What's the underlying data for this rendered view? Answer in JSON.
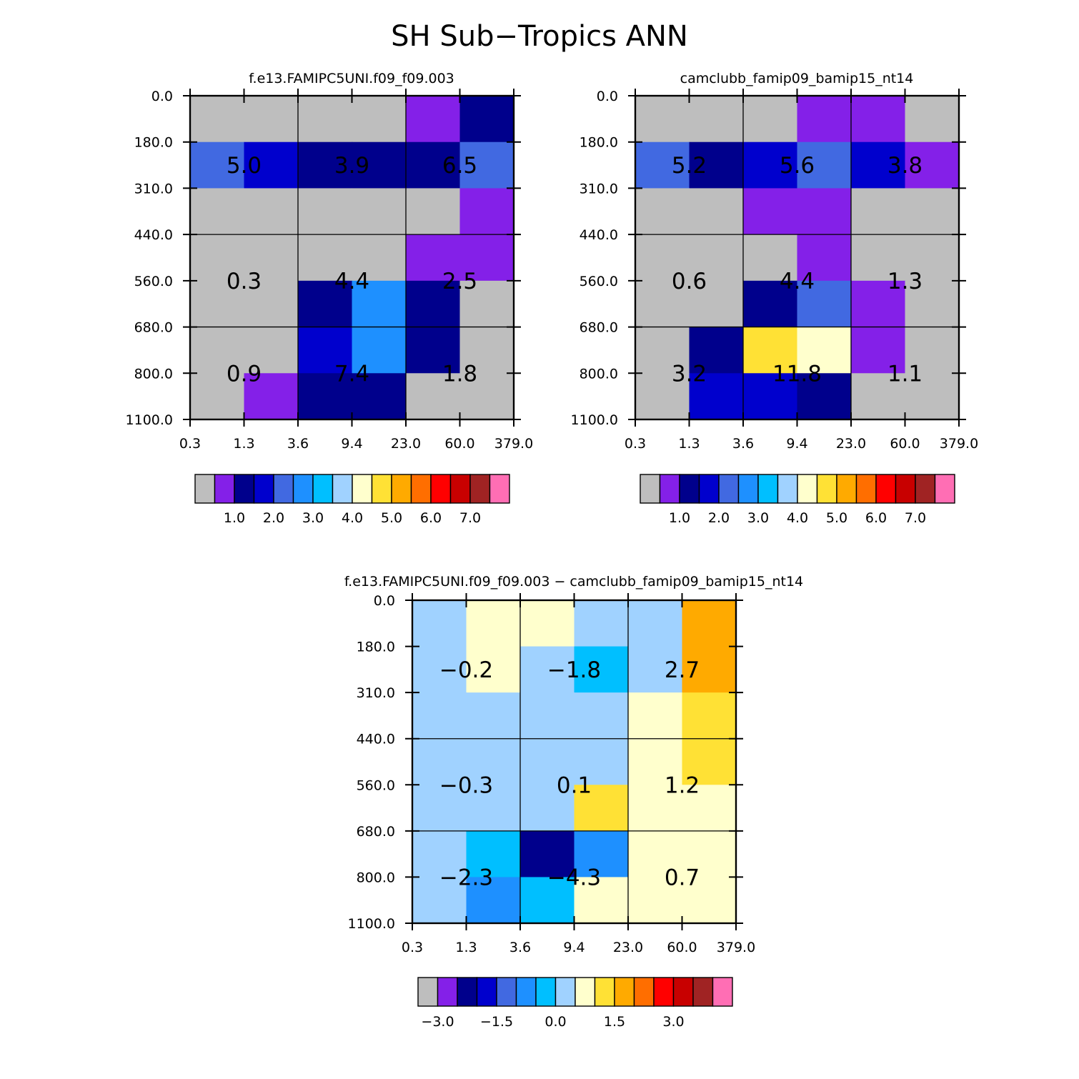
{
  "figure_title": "SH Sub−Tropics ANN",
  "palette": [
    "#bebebe",
    "#8420e8",
    "#00008c",
    "#0000cd",
    "#4169e1",
    "#1e90ff",
    "#00bfff",
    "#a0d2ff",
    "#ffffcd",
    "#ffe135",
    "#ffaa00",
    "#ff6e00",
    "#ff0000",
    "#c80000",
    "#a02323",
    "#ff6eb4"
  ],
  "chart_data": [
    {
      "type": "heatmap",
      "title": "f.e13.FAMIPC5UNI.f09_f09.003",
      "x_tick_labels": [
        "0.3",
        "1.3",
        "3.6",
        "9.4",
        "23.0",
        "60.0",
        "379.0"
      ],
      "y_tick_labels": [
        "0.0",
        "180.0",
        "310.0",
        "440.0",
        "560.0",
        "680.0",
        "800.0",
        "1100.0"
      ],
      "cell_color_index": [
        [
          0,
          0,
          0,
          0,
          1,
          2
        ],
        [
          4,
          3,
          2,
          2,
          2,
          4
        ],
        [
          0,
          0,
          0,
          0,
          0,
          1
        ],
        [
          0,
          0,
          0,
          0,
          1,
          1
        ],
        [
          0,
          0,
          2,
          5,
          2,
          0
        ],
        [
          0,
          0,
          3,
          5,
          2,
          0
        ],
        [
          0,
          1,
          2,
          2,
          0,
          0
        ]
      ],
      "box_values": [
        [
          "5.0",
          "3.9",
          "6.5"
        ],
        [
          "0.3",
          "4.4",
          "2.5"
        ],
        [
          "0.9",
          "7.4",
          "1.8"
        ]
      ],
      "colorbar_labels": [
        "1.0",
        "2.0",
        "3.0",
        "4.0",
        "5.0",
        "6.0",
        "7.0"
      ]
    },
    {
      "type": "heatmap",
      "title": "camclubb_famip09_bamip15_nt14",
      "x_tick_labels": [
        "0.3",
        "1.3",
        "3.6",
        "9.4",
        "23.0",
        "60.0",
        "379.0"
      ],
      "y_tick_labels": [
        "0.0",
        "180.0",
        "310.0",
        "440.0",
        "560.0",
        "680.0",
        "800.0",
        "1100.0"
      ],
      "cell_color_index": [
        [
          0,
          0,
          0,
          1,
          1,
          0
        ],
        [
          4,
          2,
          3,
          4,
          3,
          1
        ],
        [
          0,
          0,
          1,
          1,
          0,
          0
        ],
        [
          0,
          0,
          0,
          1,
          0,
          0
        ],
        [
          0,
          0,
          2,
          4,
          1,
          0
        ],
        [
          0,
          2,
          9,
          8,
          1,
          0
        ],
        [
          0,
          3,
          3,
          2,
          0,
          0
        ]
      ],
      "box_values": [
        [
          "5.2",
          "5.6",
          "3.8"
        ],
        [
          "0.6",
          "4.4",
          "1.3"
        ],
        [
          "3.2",
          "11.8",
          "1.1"
        ]
      ],
      "colorbar_labels": [
        "1.0",
        "2.0",
        "3.0",
        "4.0",
        "5.0",
        "6.0",
        "7.0"
      ]
    },
    {
      "type": "heatmap",
      "title": "f.e13.FAMIPC5UNI.f09_f09.003 − camclubb_famip09_bamip15_nt14",
      "x_tick_labels": [
        "0.3",
        "1.3",
        "3.6",
        "9.4",
        "23.0",
        "60.0",
        "379.0"
      ],
      "y_tick_labels": [
        "0.0",
        "180.0",
        "310.0",
        "440.0",
        "560.0",
        "680.0",
        "800.0",
        "1100.0"
      ],
      "cell_color_index": [
        [
          7,
          8,
          8,
          7,
          7,
          10
        ],
        [
          7,
          8,
          7,
          6,
          7,
          10
        ],
        [
          7,
          7,
          7,
          7,
          8,
          9
        ],
        [
          7,
          7,
          7,
          7,
          8,
          9
        ],
        [
          7,
          7,
          7,
          9,
          8,
          8
        ],
        [
          7,
          6,
          2,
          5,
          8,
          8
        ],
        [
          7,
          5,
          6,
          8,
          8,
          8
        ]
      ],
      "box_values": [
        [
          "−0.2",
          "−1.8",
          "2.7"
        ],
        [
          "−0.3",
          "0.1",
          "1.2"
        ],
        [
          "−2.3",
          "−4.3",
          "0.7"
        ]
      ],
      "colorbar_labels": [
        "−3.0",
        "−1.5",
        "0.0",
        "1.5",
        "3.0"
      ]
    }
  ]
}
